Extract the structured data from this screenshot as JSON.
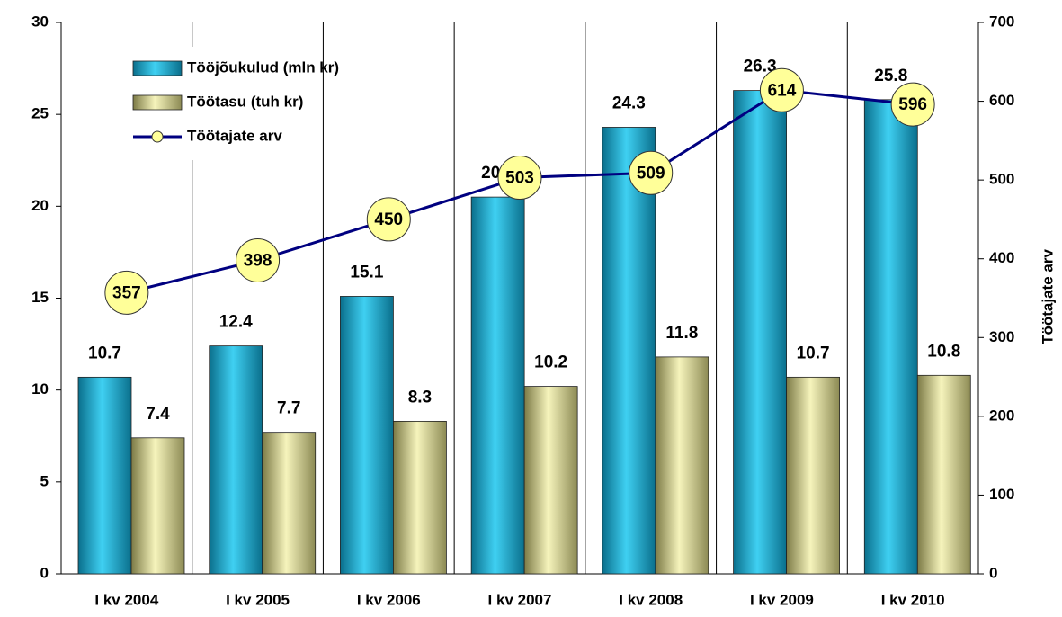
{
  "chart_data": {
    "type": "bar",
    "categories": [
      "I kv 2004",
      "I kv 2005",
      "I kv 2006",
      "I kv 2007",
      "I kv 2008",
      "I kv 2009",
      "I kv 2010"
    ],
    "series": [
      {
        "name": "Tööjõukulud (mln kr)",
        "color": "#1ab4dc",
        "values": [
          10.7,
          12.4,
          15.1,
          20.5,
          24.3,
          26.3,
          25.8
        ]
      },
      {
        "name": "Töötasu (tuh kr)",
        "color": "#e6e2a0",
        "values": [
          7.4,
          7.7,
          8.3,
          10.2,
          11.8,
          10.7,
          10.8
        ]
      },
      {
        "name": "Töötajate arv",
        "type": "line",
        "axis": "y2",
        "color": "#000080",
        "marker_color": "#ffff99",
        "values": [
          357,
          398,
          450,
          503,
          509,
          614,
          596
        ]
      }
    ],
    "ylim": [
      0,
      30
    ],
    "yticks": [
      0,
      5,
      10,
      15,
      20,
      25,
      30
    ],
    "y2lim": [
      0,
      700
    ],
    "y2ticks": [
      0,
      100,
      200,
      300,
      400,
      500,
      600,
      700
    ],
    "y2label": "Töötajate arv",
    "legend": "upper left"
  }
}
